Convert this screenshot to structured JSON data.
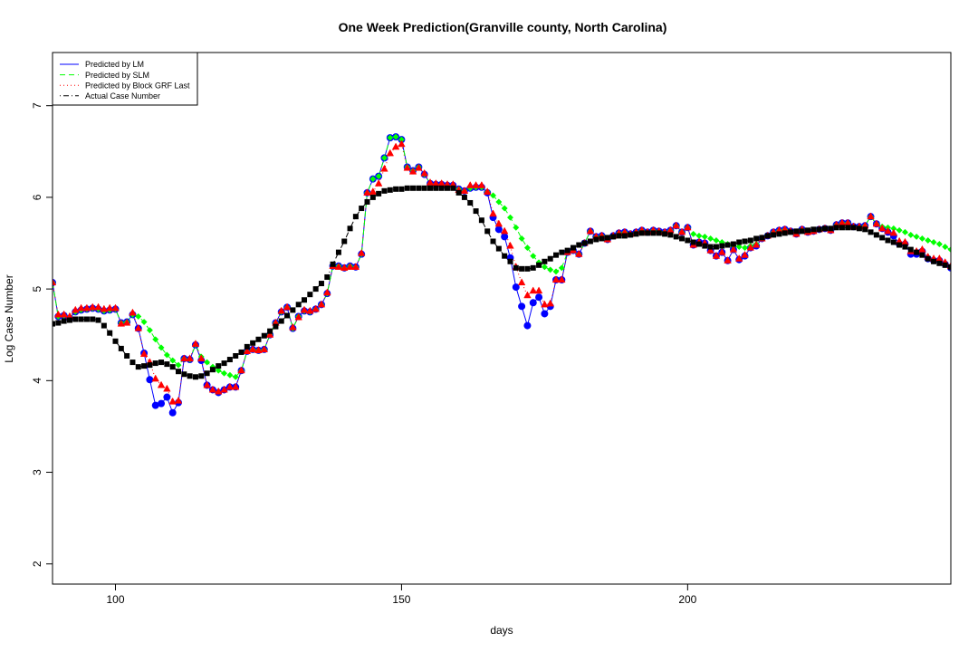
{
  "chart_data": {
    "type": "scatter",
    "title": "One Week Prediction(Granville county, North Carolina)",
    "xlabel": "days",
    "ylabel": "Log Case Number",
    "xlim": [
      89,
      246
    ],
    "ylim": [
      1.78,
      7.58
    ],
    "x_ticks": [
      100,
      150,
      200
    ],
    "y_ticks": [
      2,
      3,
      4,
      5,
      6,
      7
    ],
    "grid": false,
    "legend_position": "top-left",
    "x_start": 89,
    "series": [
      {
        "name": "Predicted by LM",
        "color": "#0000ff",
        "line_style": "solid",
        "marker": "circle",
        "values": [
          5.07,
          4.7,
          4.71,
          4.68,
          4.75,
          4.77,
          4.78,
          4.79,
          4.78,
          4.76,
          4.77,
          4.78,
          4.63,
          4.64,
          4.72,
          4.57,
          4.3,
          4.01,
          3.73,
          3.75,
          3.82,
          3.65,
          3.76,
          4.24,
          4.23,
          4.39,
          4.22,
          3.95,
          3.9,
          3.87,
          3.9,
          3.93,
          3.93,
          4.11,
          4.32,
          4.34,
          4.33,
          4.34,
          4.5,
          4.63,
          4.75,
          4.8,
          4.57,
          4.7,
          4.76,
          4.75,
          4.78,
          4.83,
          4.95,
          5.25,
          5.25,
          5.23,
          5.25,
          5.24,
          5.38,
          6.05,
          6.2,
          6.23,
          6.43,
          6.65,
          6.66,
          6.63,
          6.33,
          6.29,
          6.33,
          6.25,
          6.15,
          6.14,
          6.14,
          6.13,
          6.13,
          6.09,
          6.07,
          6.1,
          6.11,
          6.11,
          6.05,
          5.78,
          5.65,
          5.57,
          5.34,
          5.02,
          4.81,
          4.6,
          4.85,
          4.91,
          4.73,
          4.81,
          5.1,
          5.1,
          5.4,
          5.42,
          5.38,
          5.5,
          5.63,
          5.57,
          5.58,
          5.54,
          5.58,
          5.61,
          5.62,
          5.6,
          5.62,
          5.64,
          5.62,
          5.64,
          5.63,
          5.62,
          5.64,
          5.69,
          5.62,
          5.67,
          5.48,
          5.51,
          5.5,
          5.42,
          5.36,
          5.4,
          5.31,
          5.43,
          5.32,
          5.36,
          5.45,
          5.47,
          5.55,
          5.58,
          5.62,
          5.64,
          5.65,
          5.63,
          5.6,
          5.65,
          5.62,
          5.63,
          5.65,
          5.66,
          5.64,
          5.7,
          5.72,
          5.72,
          5.68,
          5.68,
          5.69,
          5.79,
          5.71,
          5.66,
          5.62,
          5.58,
          5.49,
          5.49,
          5.38,
          5.38,
          5.41,
          5.33,
          5.31,
          5.31,
          5.27,
          5.23,
          5.25
        ]
      },
      {
        "name": "Predicted by SLM",
        "color": "#00ff00",
        "line_style": "dashed",
        "marker": "diamond",
        "values": [
          5.07,
          4.7,
          4.71,
          4.68,
          4.75,
          4.77,
          4.78,
          4.79,
          4.78,
          4.76,
          4.77,
          4.78,
          4.63,
          4.64,
          4.72,
          4.7,
          4.64,
          4.55,
          4.45,
          4.36,
          4.28,
          4.22,
          4.17,
          4.24,
          4.23,
          4.39,
          4.26,
          4.2,
          4.15,
          4.11,
          4.08,
          4.06,
          4.04,
          4.11,
          4.32,
          4.34,
          4.33,
          4.34,
          4.5,
          4.63,
          4.75,
          4.8,
          4.57,
          4.7,
          4.76,
          4.75,
          4.78,
          4.83,
          4.95,
          5.25,
          5.25,
          5.23,
          5.25,
          5.24,
          5.38,
          6.05,
          6.2,
          6.23,
          6.43,
          6.65,
          6.66,
          6.63,
          6.33,
          6.29,
          6.33,
          6.25,
          6.15,
          6.14,
          6.14,
          6.13,
          6.13,
          6.09,
          6.07,
          6.1,
          6.11,
          6.11,
          6.06,
          6.02,
          5.95,
          5.88,
          5.78,
          5.67,
          5.55,
          5.45,
          5.36,
          5.29,
          5.24,
          5.21,
          5.19,
          5.23,
          5.4,
          5.42,
          5.38,
          5.5,
          5.63,
          5.57,
          5.58,
          5.54,
          5.58,
          5.61,
          5.62,
          5.6,
          5.62,
          5.64,
          5.62,
          5.64,
          5.63,
          5.62,
          5.64,
          5.69,
          5.62,
          5.67,
          5.6,
          5.58,
          5.57,
          5.55,
          5.53,
          5.51,
          5.49,
          5.47,
          5.46,
          5.45,
          5.47,
          5.49,
          5.55,
          5.58,
          5.62,
          5.64,
          5.65,
          5.63,
          5.6,
          5.65,
          5.62,
          5.63,
          5.65,
          5.66,
          5.64,
          5.7,
          5.72,
          5.72,
          5.68,
          5.68,
          5.69,
          5.79,
          5.71,
          5.68,
          5.67,
          5.66,
          5.64,
          5.62,
          5.59,
          5.57,
          5.55,
          5.53,
          5.51,
          5.49,
          5.46,
          5.43,
          5.41
        ]
      },
      {
        "name": "Predicted by Block GRF Last",
        "color": "#ff0000",
        "line_style": "dotted",
        "marker": "triangle",
        "values": [
          5.07,
          4.72,
          4.72,
          4.7,
          4.77,
          4.79,
          4.79,
          4.8,
          4.8,
          4.78,
          4.79,
          4.79,
          4.62,
          4.63,
          4.74,
          4.57,
          4.29,
          4.2,
          4.02,
          3.95,
          3.91,
          3.77,
          3.78,
          4.24,
          4.24,
          4.4,
          4.24,
          3.95,
          3.9,
          3.88,
          3.9,
          3.93,
          3.93,
          4.11,
          4.32,
          4.34,
          4.33,
          4.34,
          4.5,
          4.63,
          4.76,
          4.8,
          4.58,
          4.69,
          4.77,
          4.76,
          4.78,
          4.83,
          4.96,
          5.25,
          5.24,
          5.23,
          5.24,
          5.24,
          5.39,
          6.05,
          6.06,
          6.15,
          6.31,
          6.48,
          6.55,
          6.58,
          6.32,
          6.28,
          6.32,
          6.26,
          6.16,
          6.15,
          6.15,
          6.14,
          6.14,
          6.08,
          6.07,
          6.13,
          6.13,
          6.13,
          6.06,
          5.82,
          5.71,
          5.63,
          5.47,
          5.24,
          5.07,
          4.93,
          4.98,
          4.98,
          4.83,
          4.84,
          5.1,
          5.1,
          5.4,
          5.42,
          5.38,
          5.5,
          5.63,
          5.57,
          5.58,
          5.54,
          5.58,
          5.61,
          5.62,
          5.6,
          5.62,
          5.64,
          5.62,
          5.64,
          5.63,
          5.62,
          5.64,
          5.69,
          5.62,
          5.67,
          5.48,
          5.51,
          5.5,
          5.42,
          5.36,
          5.4,
          5.31,
          5.43,
          5.33,
          5.37,
          5.45,
          5.48,
          5.55,
          5.58,
          5.62,
          5.64,
          5.65,
          5.63,
          5.6,
          5.65,
          5.62,
          5.63,
          5.65,
          5.66,
          5.64,
          5.7,
          5.72,
          5.72,
          5.68,
          5.68,
          5.69,
          5.79,
          5.71,
          5.66,
          5.63,
          5.61,
          5.52,
          5.51,
          5.41,
          5.41,
          5.43,
          5.35,
          5.33,
          5.33,
          5.29,
          5.25,
          5.26
        ]
      },
      {
        "name": "Actual Case Number",
        "color": "#000000",
        "line_style": "dotdash",
        "marker": "square",
        "values": [
          4.62,
          4.63,
          4.65,
          4.66,
          4.67,
          4.67,
          4.67,
          4.67,
          4.66,
          4.6,
          4.52,
          4.43,
          4.35,
          4.27,
          4.2,
          4.15,
          4.16,
          4.17,
          4.19,
          4.2,
          4.18,
          4.15,
          4.1,
          4.07,
          4.05,
          4.04,
          4.05,
          4.08,
          4.12,
          4.16,
          4.19,
          4.23,
          4.27,
          4.31,
          4.37,
          4.41,
          4.45,
          4.49,
          4.54,
          4.59,
          4.65,
          4.71,
          4.77,
          4.83,
          4.88,
          4.94,
          5.0,
          5.06,
          5.13,
          5.27,
          5.4,
          5.52,
          5.66,
          5.79,
          5.88,
          5.95,
          6.0,
          6.04,
          6.07,
          6.08,
          6.09,
          6.09,
          6.1,
          6.1,
          6.1,
          6.1,
          6.1,
          6.1,
          6.1,
          6.1,
          6.1,
          6.05,
          6.0,
          5.94,
          5.85,
          5.75,
          5.63,
          5.52,
          5.44,
          5.36,
          5.3,
          5.23,
          5.22,
          5.22,
          5.23,
          5.26,
          5.3,
          5.33,
          5.37,
          5.4,
          5.42,
          5.45,
          5.48,
          5.5,
          5.52,
          5.54,
          5.55,
          5.56,
          5.57,
          5.58,
          5.58,
          5.59,
          5.6,
          5.61,
          5.61,
          5.61,
          5.61,
          5.6,
          5.59,
          5.57,
          5.55,
          5.53,
          5.51,
          5.49,
          5.47,
          5.46,
          5.46,
          5.47,
          5.48,
          5.49,
          5.51,
          5.52,
          5.53,
          5.55,
          5.56,
          5.58,
          5.59,
          5.6,
          5.61,
          5.62,
          5.63,
          5.63,
          5.64,
          5.65,
          5.65,
          5.66,
          5.66,
          5.67,
          5.67,
          5.67,
          5.67,
          5.66,
          5.65,
          5.62,
          5.59,
          5.56,
          5.53,
          5.51,
          5.48,
          5.46,
          5.43,
          5.4,
          5.37,
          5.33,
          5.3,
          5.28,
          5.26,
          5.24,
          5.23
        ]
      }
    ]
  }
}
